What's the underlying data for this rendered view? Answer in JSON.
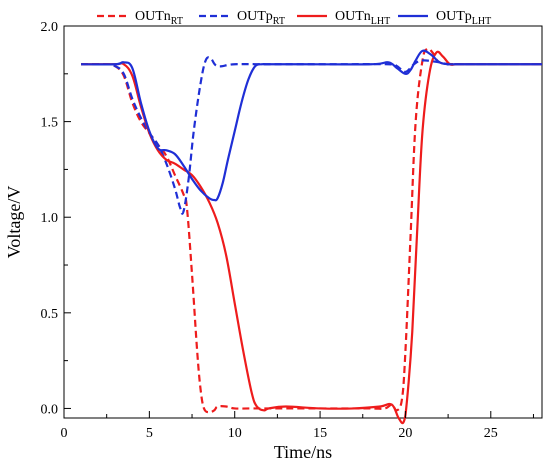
{
  "chart_data": {
    "type": "line",
    "title": "",
    "xlabel": "Time/ns",
    "ylabel": "Voltage/V",
    "xlim": [
      0,
      28
    ],
    "ylim": [
      -0.05,
      2.0
    ],
    "xticks": [
      0,
      5,
      10,
      15,
      20,
      25
    ],
    "yticks": [
      0.0,
      0.5,
      1.0,
      1.5,
      2.0
    ],
    "x_tick_labels": [
      "0",
      "5",
      "10",
      "15",
      "20",
      "25"
    ],
    "y_tick_labels": [
      "0.0",
      "0.5",
      "1.0",
      "1.5",
      "2.0"
    ],
    "grid": false,
    "legend_position": "top",
    "series": [
      {
        "name": "OUTn_RT",
        "label_main": "OUTn",
        "label_sub": "RT",
        "color": "#ee1c1c",
        "dash": "dashed",
        "x": [
          1.0,
          2.5,
          3.0,
          3.5,
          4.0,
          4.5,
          5.0,
          5.5,
          6.0,
          6.5,
          7.0,
          7.2,
          7.5,
          7.8,
          8.0,
          8.2,
          8.5,
          8.8,
          9.0,
          9.5,
          10.0,
          11.0,
          12.0,
          14.0,
          16.0,
          18.0,
          18.8,
          19.2,
          19.5,
          19.8,
          20.0,
          20.3,
          20.6,
          21.0,
          21.3,
          21.6,
          22.0,
          23.0,
          25.0,
          28.0
        ],
        "y": [
          1.8,
          1.8,
          1.79,
          1.74,
          1.6,
          1.5,
          1.44,
          1.38,
          1.32,
          1.22,
          1.12,
          1.05,
          0.7,
          0.3,
          0.1,
          0.0,
          -0.02,
          -0.01,
          0.01,
          0.01,
          0.0,
          0.0,
          0.0,
          0.0,
          0.0,
          0.0,
          0.0,
          0.02,
          -0.01,
          0.05,
          0.3,
          0.9,
          1.5,
          1.82,
          1.88,
          1.86,
          1.81,
          1.8,
          1.8,
          1.8
        ]
      },
      {
        "name": "OUTp_RT",
        "label_main": "OUTp",
        "label_sub": "RT",
        "color": "#1f2fd6",
        "dash": "dashed",
        "x": [
          1.0,
          2.5,
          3.0,
          3.5,
          4.0,
          4.5,
          5.0,
          5.5,
          6.0,
          6.5,
          6.8,
          7.0,
          7.3,
          7.6,
          8.0,
          8.3,
          8.6,
          9.0,
          10.0,
          12.0,
          16.0,
          19.0,
          19.5,
          20.0,
          20.5,
          21.0,
          22.0,
          23.0,
          28.0
        ],
        "y": [
          1.8,
          1.8,
          1.79,
          1.75,
          1.62,
          1.52,
          1.44,
          1.38,
          1.28,
          1.15,
          1.05,
          1.03,
          1.2,
          1.45,
          1.7,
          1.82,
          1.83,
          1.79,
          1.8,
          1.8,
          1.8,
          1.8,
          1.79,
          1.76,
          1.8,
          1.82,
          1.81,
          1.8,
          1.8
        ]
      },
      {
        "name": "OUTn_LHT",
        "label_main": "OUTn",
        "label_sub": "LHT",
        "color": "#ee1c1c",
        "dash": "solid",
        "x": [
          1.0,
          3.0,
          3.5,
          4.0,
          4.5,
          5.0,
          5.5,
          6.0,
          6.5,
          7.0,
          7.5,
          8.0,
          8.5,
          9.0,
          9.5,
          10.0,
          10.5,
          11.0,
          11.3,
          11.7,
          12.0,
          13.0,
          15.0,
          17.0,
          18.5,
          19.2,
          19.6,
          19.9,
          20.1,
          20.4,
          20.7,
          21.0,
          21.4,
          21.8,
          22.2,
          22.6,
          23.0,
          24.0,
          28.0
        ],
        "y": [
          1.8,
          1.8,
          1.8,
          1.74,
          1.58,
          1.44,
          1.35,
          1.3,
          1.28,
          1.25,
          1.22,
          1.16,
          1.08,
          0.97,
          0.8,
          0.55,
          0.3,
          0.08,
          0.01,
          -0.01,
          0.0,
          0.01,
          0.0,
          0.0,
          0.01,
          0.02,
          -0.05,
          -0.07,
          0.05,
          0.4,
          0.95,
          1.45,
          1.75,
          1.86,
          1.84,
          1.8,
          1.8,
          1.8,
          1.8
        ]
      },
      {
        "name": "OUTp_LHT",
        "label_main": "OUTp",
        "label_sub": "LHT",
        "color": "#1f2fd6",
        "dash": "solid",
        "x": [
          1.0,
          3.0,
          3.5,
          4.0,
          4.5,
          5.0,
          5.5,
          6.0,
          6.5,
          7.0,
          7.5,
          8.0,
          8.5,
          8.8,
          9.0,
          9.3,
          9.6,
          10.0,
          10.4,
          10.8,
          11.2,
          11.6,
          12.0,
          14.0,
          18.0,
          19.0,
          19.5,
          20.0,
          20.3,
          20.6,
          21.0,
          21.5,
          22.0,
          22.5,
          23.0,
          28.0
        ],
        "y": [
          1.8,
          1.8,
          1.81,
          1.78,
          1.6,
          1.45,
          1.36,
          1.35,
          1.33,
          1.27,
          1.2,
          1.14,
          1.1,
          1.09,
          1.1,
          1.18,
          1.3,
          1.45,
          1.6,
          1.72,
          1.79,
          1.8,
          1.8,
          1.8,
          1.8,
          1.81,
          1.78,
          1.75,
          1.77,
          1.82,
          1.87,
          1.85,
          1.81,
          1.8,
          1.8,
          1.8
        ]
      }
    ]
  }
}
